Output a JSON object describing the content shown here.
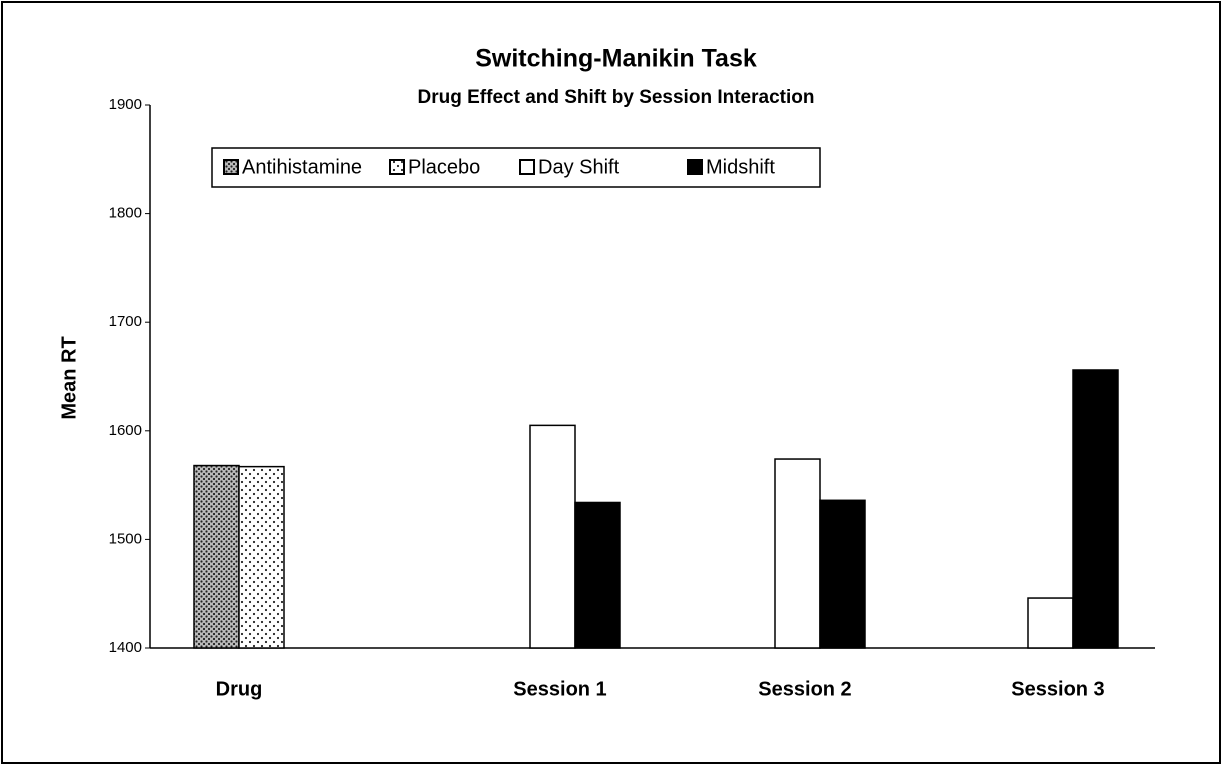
{
  "chart_data": {
    "type": "bar",
    "title": "Switching-Manikin Task",
    "subtitle": "Drug Effect and Shift by Session Interaction",
    "y_label": "Mean RT",
    "categories": [
      "Drug",
      "Session 1",
      "Session 2",
      "Session 3"
    ],
    "series": [
      {
        "name": "Antihistamine",
        "color": "#999999",
        "pattern": "dense-dots",
        "values": [
          1568,
          null,
          null,
          null
        ]
      },
      {
        "name": "Placebo",
        "color": "#ffffff",
        "pattern": "sparse-dots",
        "values": [
          1567,
          null,
          null,
          null
        ]
      },
      {
        "name": "Day Shift",
        "color": "#ffffff",
        "values": [
          null,
          1605,
          1574,
          1446
        ]
      },
      {
        "name": "Midshift",
        "color": "#000000",
        "values": [
          null,
          1534,
          1536,
          1656
        ]
      }
    ],
    "ylim": [
      1400,
      1900
    ],
    "yticks": [
      1400,
      1500,
      1600,
      1700,
      1800,
      1900
    ],
    "grid": false,
    "legend": "top-left"
  }
}
